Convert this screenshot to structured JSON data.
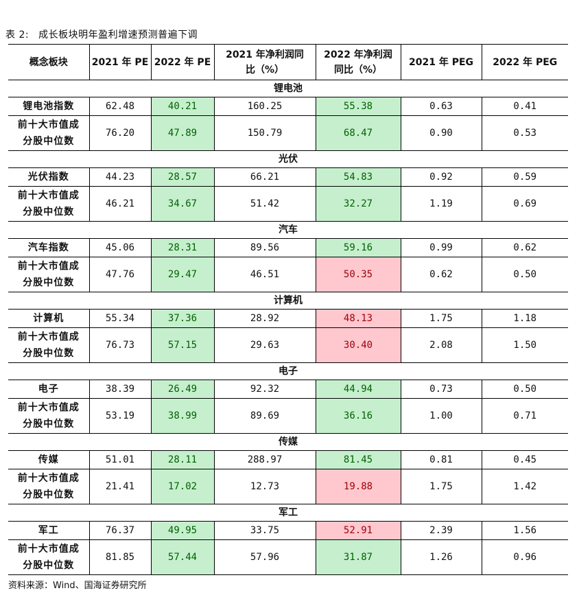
{
  "caption": {
    "label": "表 2:",
    "title": "成长板块明年盈利增速预测普遍下调"
  },
  "headers": [
    "概念板块",
    "2021 年 PE",
    "2022 年 PE",
    "2021 年净利润同比（%）",
    "2022 年净利润同比（%）",
    "2021 年 PEG",
    "2022 年 PEG"
  ],
  "sections": [
    {
      "title": "锂电池",
      "rows": [
        {
          "name": "锂电池指数",
          "v": [
            "62.48",
            "40.21",
            "160.25",
            "55.38",
            "0.63",
            "0.41"
          ],
          "c": [
            "",
            "g",
            "",
            "g",
            "",
            ""
          ]
        },
        {
          "name": "前十大市值成分股中位数",
          "v": [
            "76.20",
            "47.89",
            "150.79",
            "68.47",
            "0.90",
            "0.53"
          ],
          "c": [
            "",
            "g",
            "",
            "g",
            "",
            ""
          ]
        }
      ]
    },
    {
      "title": "光伏",
      "rows": [
        {
          "name": "光伏指数",
          "v": [
            "44.23",
            "28.57",
            "66.21",
            "54.83",
            "0.92",
            "0.59"
          ],
          "c": [
            "",
            "g",
            "",
            "g",
            "",
            ""
          ]
        },
        {
          "name": "前十大市值成分股中位数",
          "v": [
            "46.21",
            "34.67",
            "51.42",
            "32.27",
            "1.19",
            "0.69"
          ],
          "c": [
            "",
            "g",
            "",
            "g",
            "",
            ""
          ]
        }
      ]
    },
    {
      "title": "汽车",
      "rows": [
        {
          "name": "汽车指数",
          "v": [
            "45.06",
            "28.31",
            "89.56",
            "59.16",
            "0.99",
            "0.62"
          ],
          "c": [
            "",
            "g",
            "",
            "g",
            "",
            ""
          ]
        },
        {
          "name": "前十大市值成分股中位数",
          "v": [
            "47.76",
            "29.47",
            "46.51",
            "50.35",
            "0.62",
            "0.50"
          ],
          "c": [
            "",
            "g",
            "",
            "r",
            "",
            ""
          ]
        }
      ]
    },
    {
      "title": "计算机",
      "rows": [
        {
          "name": "计算机",
          "v": [
            "55.34",
            "37.36",
            "28.92",
            "48.13",
            "1.75",
            "1.18"
          ],
          "c": [
            "",
            "g",
            "",
            "r",
            "",
            ""
          ]
        },
        {
          "name": "前十大市值成分股中位数",
          "v": [
            "76.73",
            "57.15",
            "29.63",
            "30.40",
            "2.08",
            "1.50"
          ],
          "c": [
            "",
            "g",
            "",
            "r",
            "",
            ""
          ]
        }
      ]
    },
    {
      "title": "电子",
      "rows": [
        {
          "name": "电子",
          "v": [
            "38.39",
            "26.49",
            "92.32",
            "44.94",
            "0.73",
            "0.50"
          ],
          "c": [
            "",
            "g",
            "",
            "g",
            "",
            ""
          ]
        },
        {
          "name": "前十大市值成分股中位数",
          "v": [
            "53.19",
            "38.99",
            "89.69",
            "36.16",
            "1.00",
            "0.71"
          ],
          "c": [
            "",
            "g",
            "",
            "g",
            "",
            ""
          ]
        }
      ]
    },
    {
      "title": "传媒",
      "rows": [
        {
          "name": "传媒",
          "v": [
            "51.01",
            "28.11",
            "288.97",
            "81.45",
            "0.81",
            "0.45"
          ],
          "c": [
            "",
            "g",
            "",
            "g",
            "",
            ""
          ]
        },
        {
          "name": "前十大市值成分股中位数",
          "v": [
            "21.41",
            "17.02",
            "12.73",
            "19.88",
            "1.75",
            "1.42"
          ],
          "c": [
            "",
            "g",
            "",
            "r",
            "",
            ""
          ]
        }
      ]
    },
    {
      "title": "军工",
      "rows": [
        {
          "name": "军工",
          "v": [
            "76.37",
            "49.95",
            "33.75",
            "52.91",
            "2.39",
            "1.56"
          ],
          "c": [
            "",
            "g",
            "",
            "r",
            "",
            ""
          ]
        },
        {
          "name": "前十大市值成分股中位数",
          "v": [
            "81.85",
            "57.44",
            "57.96",
            "31.87",
            "1.26",
            "0.96"
          ],
          "c": [
            "",
            "g",
            "",
            "g",
            "",
            ""
          ]
        }
      ]
    }
  ],
  "source": "资料来源：Wind、国海证券研究所",
  "colors": {
    "green_fill": "#c6efce",
    "green_text": "#006100",
    "red_fill": "#ffc7ce",
    "red_text": "#9c0006"
  }
}
